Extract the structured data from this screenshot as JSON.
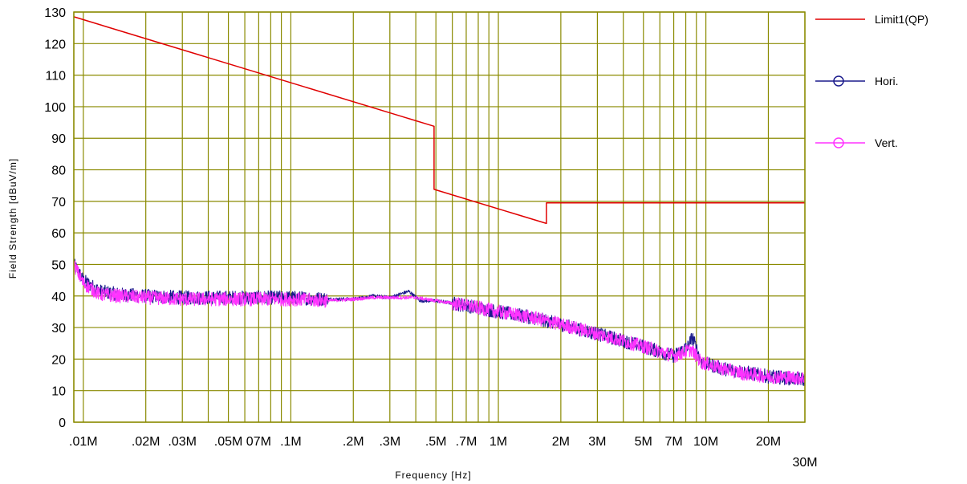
{
  "chart_data": {
    "type": "line",
    "title": "",
    "xlabel": "Frequency [Hz]",
    "ylabel": "Field Strength [dBuV/m]",
    "x_scale": "log",
    "xlim_hz": [
      9000,
      30000000
    ],
    "ylim": [
      0,
      130
    ],
    "grid": true,
    "grid_color": "#8a8a00",
    "legend_position": "right",
    "y_ticks": [
      0,
      10,
      20,
      30,
      40,
      50,
      60,
      70,
      80,
      90,
      100,
      110,
      120,
      130
    ],
    "x_ticks": [
      {
        "hz": 10000,
        "label": ".01M"
      },
      {
        "hz": 20000,
        "label": ".02M"
      },
      {
        "hz": 30000,
        "label": ".03M"
      },
      {
        "hz": 50000,
        "label": ".05M"
      },
      {
        "hz": 70000,
        "label": "07M"
      },
      {
        "hz": 100000,
        "label": ".1M"
      },
      {
        "hz": 200000,
        "label": ".2M"
      },
      {
        "hz": 300000,
        "label": ".3M"
      },
      {
        "hz": 500000,
        "label": ".5M"
      },
      {
        "hz": 700000,
        "label": ".7M"
      },
      {
        "hz": 1000000,
        "label": "1M"
      },
      {
        "hz": 2000000,
        "label": "2M"
      },
      {
        "hz": 3000000,
        "label": "3M"
      },
      {
        "hz": 5000000,
        "label": "5M"
      },
      {
        "hz": 7000000,
        "label": "7M"
      },
      {
        "hz": 10000000,
        "label": "10M"
      },
      {
        "hz": 20000000,
        "label": "20M"
      },
      {
        "hz": 30000000,
        "label": "30M"
      }
    ],
    "series": [
      {
        "name": "Limit1(QP)",
        "color": "#e00000",
        "marker": "none",
        "points": [
          [
            9000,
            128.5
          ],
          [
            490000,
            93.8
          ],
          [
            490000,
            73.8
          ],
          [
            1705000,
            63.0
          ],
          [
            1705000,
            69.5
          ],
          [
            30000000,
            69.5
          ]
        ]
      },
      {
        "name": "Hori.",
        "color": "#1a1a8c",
        "marker": "circle",
        "noise": 2.2,
        "points": [
          [
            9000,
            50
          ],
          [
            10000,
            45
          ],
          [
            12000,
            41.5
          ],
          [
            15000,
            40.5
          ],
          [
            20000,
            40
          ],
          [
            30000,
            39.5
          ],
          [
            50000,
            39.5
          ],
          [
            70000,
            39.5
          ],
          [
            100000,
            39.5
          ],
          [
            150000,
            39
          ],
          [
            200000,
            39
          ],
          [
            250000,
            40
          ],
          [
            300000,
            39.5
          ],
          [
            370000,
            41.5
          ],
          [
            420000,
            38.5
          ],
          [
            500000,
            38.5
          ],
          [
            700000,
            37
          ],
          [
            1000000,
            35
          ],
          [
            1500000,
            33
          ],
          [
            2000000,
            31
          ],
          [
            3000000,
            28
          ],
          [
            5000000,
            24
          ],
          [
            7000000,
            21
          ],
          [
            8200000,
            24
          ],
          [
            8600000,
            27
          ],
          [
            9500000,
            19
          ],
          [
            12000000,
            17
          ],
          [
            15000000,
            16
          ],
          [
            20000000,
            14.5
          ],
          [
            30000000,
            13.5
          ]
        ]
      },
      {
        "name": "Vert.",
        "color": "#ff33ff",
        "marker": "circle",
        "noise": 2.2,
        "points": [
          [
            9000,
            50
          ],
          [
            10000,
            44
          ],
          [
            12000,
            40.5
          ],
          [
            15000,
            40
          ],
          [
            20000,
            39.5
          ],
          [
            30000,
            39
          ],
          [
            50000,
            39
          ],
          [
            70000,
            39
          ],
          [
            100000,
            39
          ],
          [
            150000,
            38.5
          ],
          [
            200000,
            39
          ],
          [
            250000,
            39.5
          ],
          [
            300000,
            39.5
          ],
          [
            400000,
            39.5
          ],
          [
            500000,
            38.5
          ],
          [
            700000,
            37
          ],
          [
            1000000,
            35
          ],
          [
            1500000,
            33
          ],
          [
            2000000,
            31
          ],
          [
            3000000,
            28
          ],
          [
            5000000,
            24
          ],
          [
            7000000,
            21
          ],
          [
            8500000,
            23
          ],
          [
            9500000,
            19
          ],
          [
            12000000,
            17
          ],
          [
            15000000,
            15.5
          ],
          [
            20000000,
            14.5
          ],
          [
            30000000,
            14
          ]
        ]
      }
    ]
  }
}
